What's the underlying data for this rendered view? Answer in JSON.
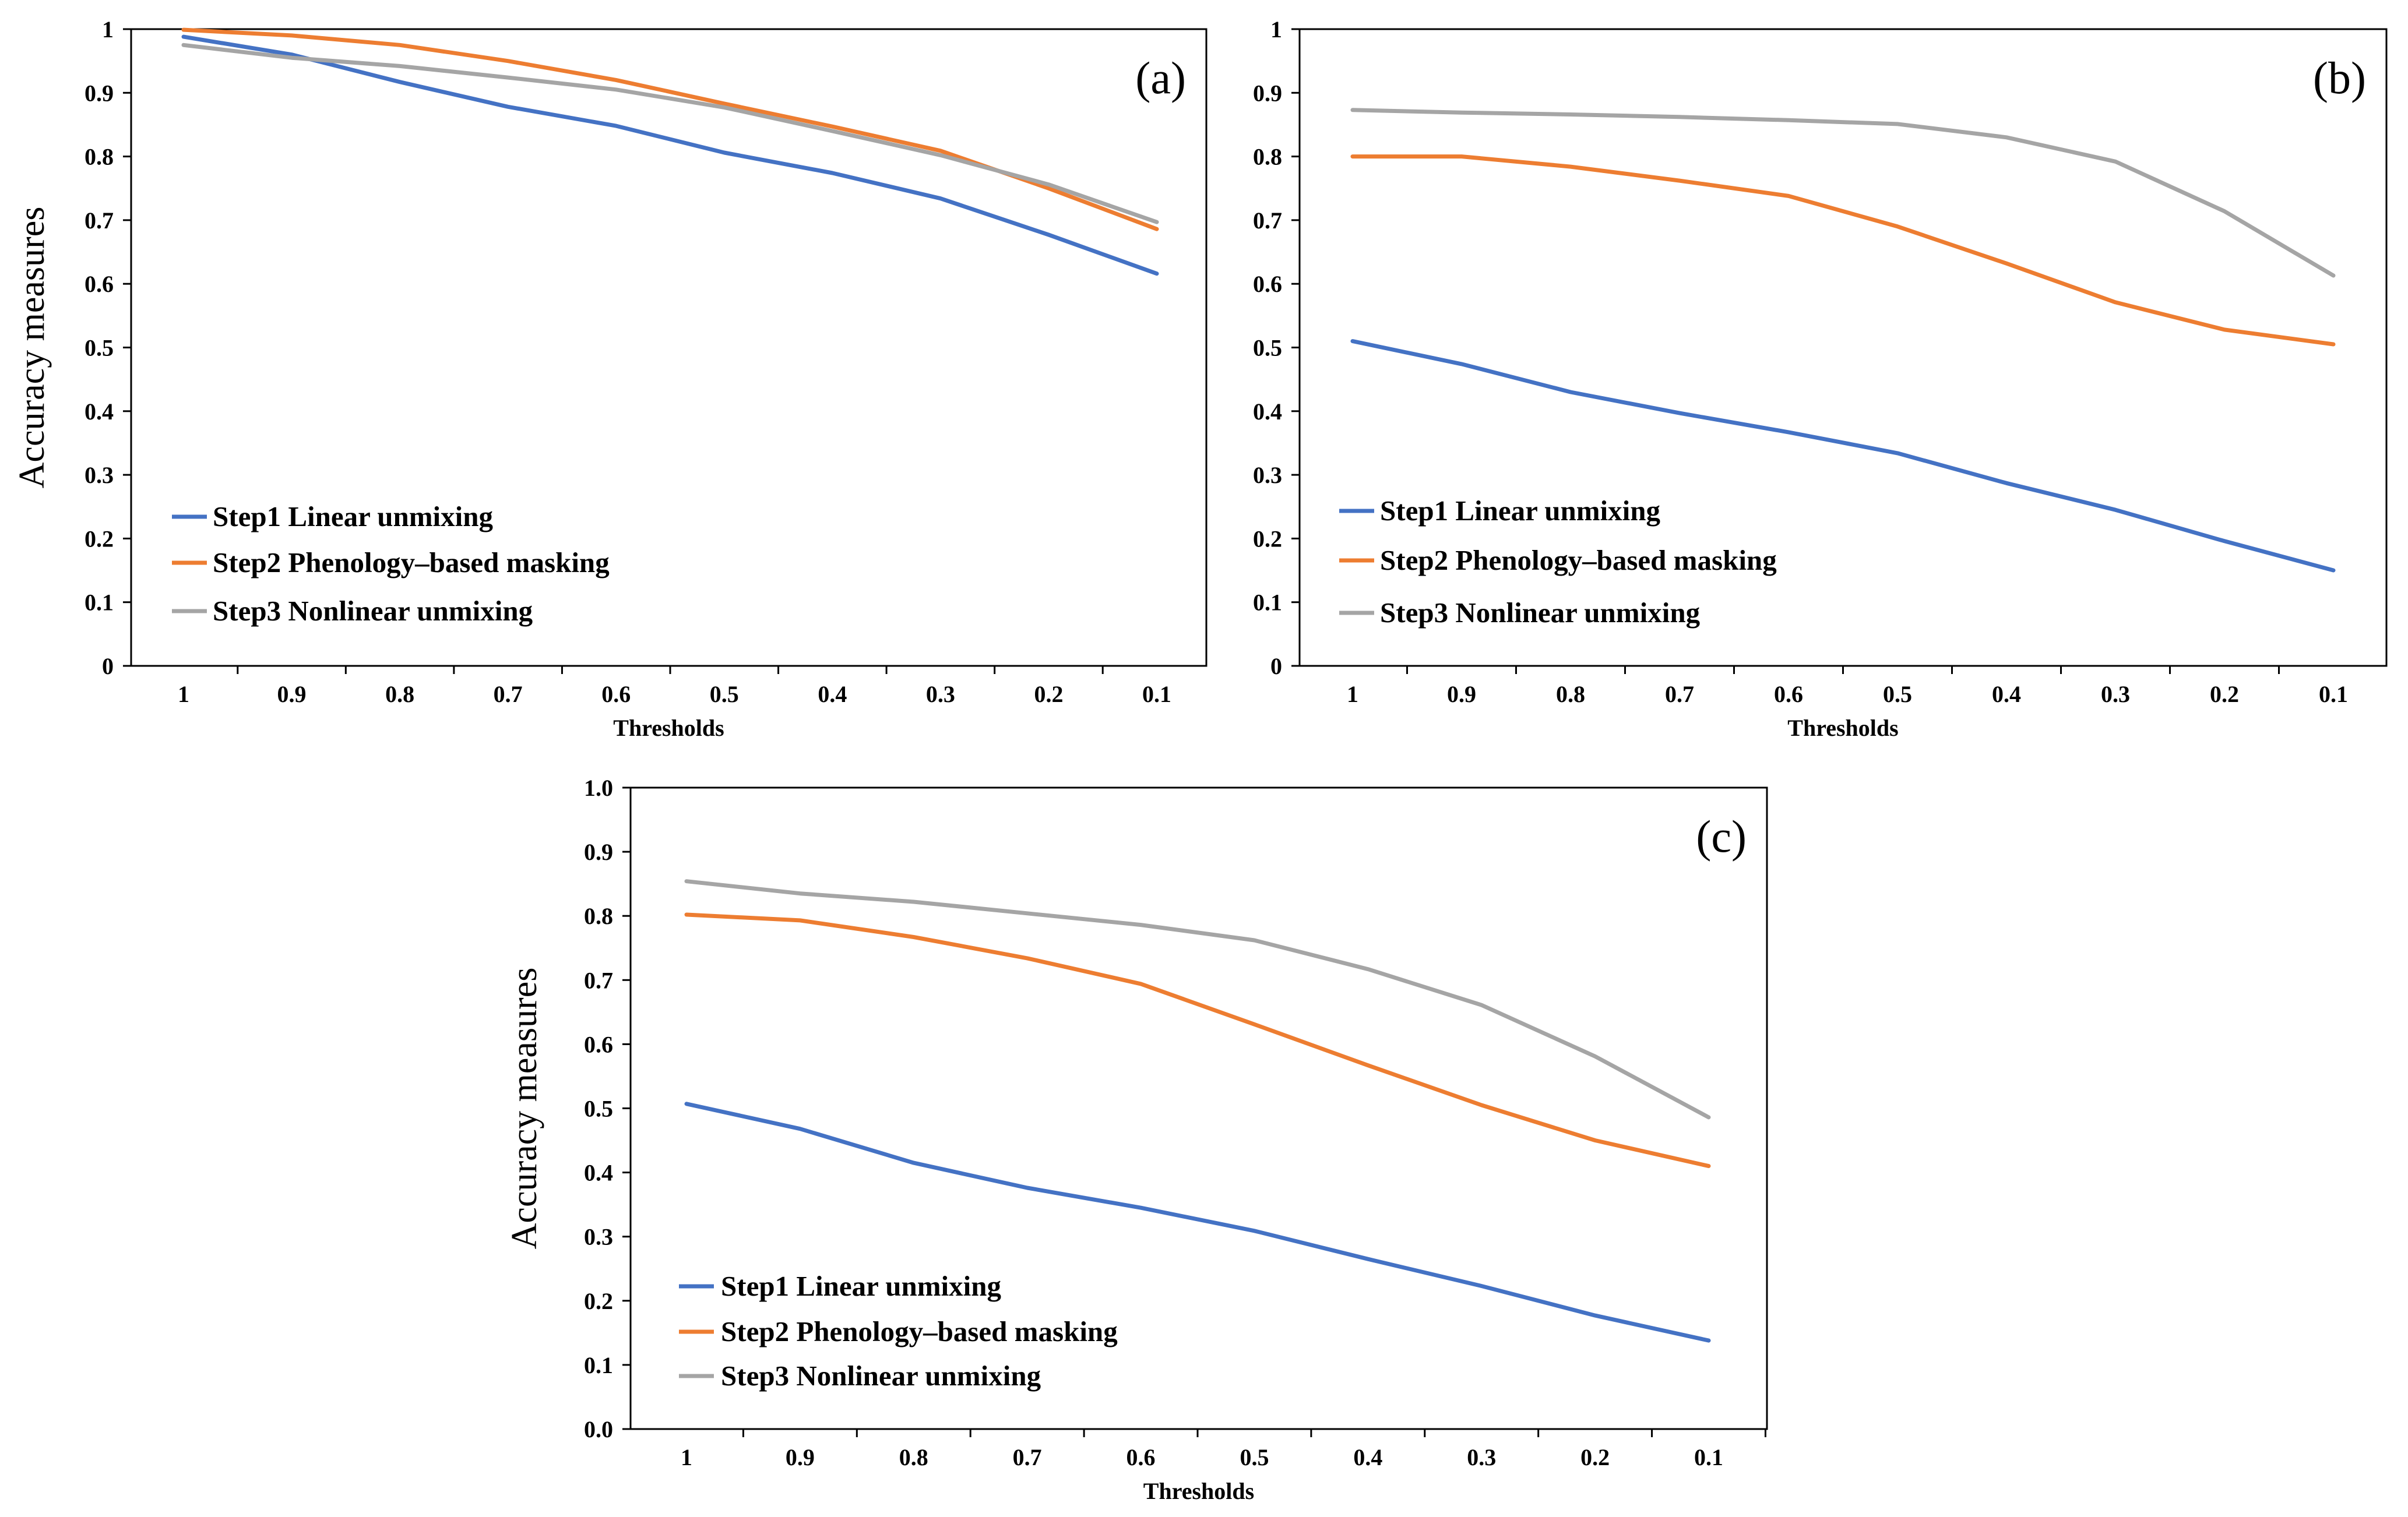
{
  "colors": {
    "step1": "#4472C4",
    "step2": "#ED7D31",
    "step3": "#A5A5A5",
    "axis": "#000000"
  },
  "chart_data": [
    {
      "type": "line",
      "panel_label": "(a)",
      "xlabel": "Thresholds",
      "ylabel": "Accuracy measures",
      "categories": [
        "1",
        "0.9",
        "0.8",
        "0.7",
        "0.6",
        "0.5",
        "0.4",
        "0.3",
        "0.2",
        "0.1"
      ],
      "ylim": [
        0,
        1
      ],
      "yticks": [
        "0",
        "0.1",
        "0.2",
        "0.3",
        "0.4",
        "0.5",
        "0.6",
        "0.7",
        "0.8",
        "0.9",
        "1"
      ],
      "legend_position": "bottom-left",
      "grid": false,
      "series": [
        {
          "name": "Step1  Linear unmixing",
          "color": "#4472C4",
          "values": [
            0.988,
            0.96,
            0.917,
            0.878,
            0.848,
            0.806,
            0.774,
            0.734,
            0.677,
            0.616
          ]
        },
        {
          "name": "Step2  Phenology–based masking",
          "color": "#ED7D31",
          "values": [
            0.999,
            0.99,
            0.975,
            0.95,
            0.92,
            0.883,
            0.847,
            0.809,
            0.75,
            0.686
          ]
        },
        {
          "name": "Step3  Nonlinear unmixing",
          "color": "#A5A5A5",
          "values": [
            0.975,
            0.955,
            0.942,
            0.924,
            0.905,
            0.877,
            0.84,
            0.802,
            0.756,
            0.697
          ]
        }
      ]
    },
    {
      "type": "line",
      "panel_label": "(b)",
      "xlabel": "Thresholds",
      "ylabel": "",
      "categories": [
        "1",
        "0.9",
        "0.8",
        "0.7",
        "0.6",
        "0.5",
        "0.4",
        "0.3",
        "0.2",
        "0.1"
      ],
      "ylim": [
        0,
        1
      ],
      "yticks": [
        "0",
        "0.1",
        "0.2",
        "0.3",
        "0.4",
        "0.5",
        "0.6",
        "0.7",
        "0.8",
        "0.9",
        "1"
      ],
      "legend_position": "bottom-left",
      "grid": false,
      "series": [
        {
          "name": "Step1  Linear unmixing",
          "color": "#4472C4",
          "values": [
            0.51,
            0.474,
            0.43,
            0.397,
            0.367,
            0.334,
            0.287,
            0.245,
            0.196,
            0.15
          ]
        },
        {
          "name": "Step2  Phenology–based masking",
          "color": "#ED7D31",
          "values": [
            0.8,
            0.8,
            0.784,
            0.762,
            0.738,
            0.69,
            0.632,
            0.571,
            0.528,
            0.505
          ]
        },
        {
          "name": "Step3  Nonlinear unmixing",
          "color": "#A5A5A5",
          "values": [
            0.873,
            0.869,
            0.866,
            0.862,
            0.857,
            0.851,
            0.83,
            0.792,
            0.714,
            0.613
          ]
        }
      ]
    },
    {
      "type": "line",
      "panel_label": "(c)",
      "xlabel": "Thresholds",
      "ylabel": "Accuracy measures",
      "categories": [
        "1",
        "0.9",
        "0.8",
        "0.7",
        "0.6",
        "0.5",
        "0.4",
        "0.3",
        "0.2",
        "0.1"
      ],
      "ylim": [
        0,
        1
      ],
      "yticks": [
        "0.0",
        "0.1",
        "0.2",
        "0.3",
        "0.4",
        "0.5",
        "0.6",
        "0.7",
        "0.8",
        "0.9",
        "1.0"
      ],
      "legend_position": "bottom-left",
      "grid": false,
      "series": [
        {
          "name": "Step1  Linear unmixing",
          "color": "#4472C4",
          "values": [
            0.507,
            0.468,
            0.415,
            0.376,
            0.345,
            0.309,
            0.265,
            0.223,
            0.177,
            0.138
          ]
        },
        {
          "name": "Step2  Phenology–based masking",
          "color": "#ED7D31",
          "values": [
            0.802,
            0.793,
            0.767,
            0.734,
            0.694,
            0.631,
            0.567,
            0.505,
            0.45,
            0.41
          ]
        },
        {
          "name": "Step3  Nonlinear unmixing",
          "color": "#A5A5A5",
          "values": [
            0.854,
            0.835,
            0.822,
            0.804,
            0.786,
            0.762,
            0.717,
            0.661,
            0.581,
            0.486
          ]
        }
      ]
    }
  ]
}
